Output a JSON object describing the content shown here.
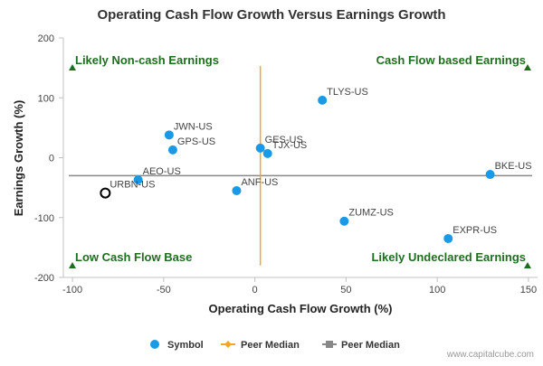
{
  "chart_data": {
    "type": "scatter",
    "title": "Operating Cash Flow Growth Versus Earnings Growth",
    "xlabel": "Operating Cash Flow Growth (%)",
    "ylabel": "Earnings Growth (%)",
    "xlim": [
      -105,
      155
    ],
    "ylim": [
      -200,
      200
    ],
    "xticks": [
      "-100",
      "-50",
      "0",
      "50",
      "100",
      "150"
    ],
    "yticks": [
      "200",
      "100",
      "0",
      "-100",
      "-200"
    ],
    "grid": false,
    "series": [
      {
        "name": "Symbol",
        "color": "#1a9ae6",
        "points": [
          {
            "label": "TLYS-US",
            "x": 37,
            "y": 96
          },
          {
            "label": "JWN-US",
            "x": -47,
            "y": 38
          },
          {
            "label": "GPS-US",
            "x": -45,
            "y": 13
          },
          {
            "label": "GES-US",
            "x": 3,
            "y": 16
          },
          {
            "label": "TJX-US",
            "x": 7,
            "y": 7
          },
          {
            "label": "BKE-US",
            "x": 129,
            "y": -28
          },
          {
            "label": "AEO-US",
            "x": -64,
            "y": -37
          },
          {
            "label": "ANF-US",
            "x": -10,
            "y": -55
          },
          {
            "label": "ZUMZ-US",
            "x": 49,
            "y": -106
          },
          {
            "label": "EXPR-US",
            "x": 106,
            "y": -135
          }
        ]
      }
    ],
    "highlight_point": {
      "label": "URBN-US",
      "x": -82,
      "y": -59
    },
    "peer_median_x": {
      "name": "Peer Median",
      "value": 3,
      "color": "#f5a623",
      "y_range": [
        -180,
        153
      ]
    },
    "peer_median_y": {
      "name": "Peer Median",
      "value": -30,
      "color": "#888888",
      "x_range": [
        -102,
        152
      ]
    },
    "quadrant_labels": {
      "top_left": "Likely Non-cash Earnings",
      "top_right": "Cash Flow based Earnings",
      "bottom_left": "Low Cash Flow Base",
      "bottom_right": "Likely Undeclared Earnings"
    },
    "legend": [
      "Symbol",
      "Peer Median",
      "Peer Median"
    ],
    "legend_placement": "bottom"
  },
  "credit": "www.capitalcube.com"
}
